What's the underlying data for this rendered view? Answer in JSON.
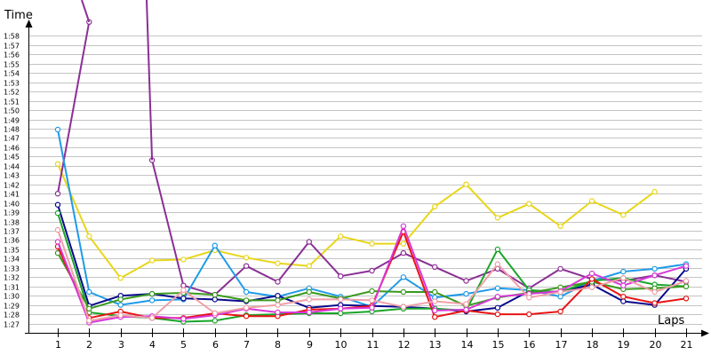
{
  "chart_data": {
    "type": "line",
    "ylabel": "Time",
    "xlabel": "Laps",
    "ylim": [
      "1:26",
      "1:59"
    ],
    "y_ticks": [
      "1:27",
      "1:28",
      "1:29",
      "1:30",
      "1:31",
      "1:32",
      "1:33",
      "1:34",
      "1:35",
      "1:36",
      "1:37",
      "1:38",
      "1:39",
      "1:40",
      "1:41",
      "1:42",
      "1:43",
      "1:44",
      "1:45",
      "1:46",
      "1:47",
      "1:48",
      "1:49",
      "1:50",
      "1:51",
      "1:52",
      "1:53",
      "1:54",
      "1:55",
      "1:56",
      "1:57",
      "1:58"
    ],
    "x": [
      "1",
      "2",
      "3",
      "4",
      "5",
      "6",
      "7",
      "8",
      "9",
      "10",
      "11",
      "12",
      "13",
      "14",
      "15",
      "16",
      "17",
      "18",
      "19",
      "20",
      "21"
    ],
    "grid": true,
    "series": [
      {
        "color": "#e8d61a",
        "values": [
          "1:44.2",
          "1:36.4",
          "1:31.9",
          "1:33.8",
          "1:33.9",
          "1:34.9",
          "1:34.1",
          "1:33.5",
          "1:33.2",
          "1:36.4",
          "1:35.6",
          "1:35.6",
          "1:39.6",
          "1:42.0",
          "1:38.4",
          "1:39.9",
          "1:37.5",
          "1:40.2",
          "1:38.7",
          "1:41.2",
          null
        ]
      },
      {
        "color": "#8b2f95",
        "values": [
          "1:41.0",
          "1:59.5",
          null,
          "1:44.6",
          "1:31.1",
          "1:30.1",
          "1:33.2",
          "1:31.5",
          "1:35.8",
          "1:32.1",
          "1:32.7",
          "1:34.6",
          "1:33.1",
          "1:31.6",
          "1:32.9",
          "1:30.8",
          "1:32.9",
          "1:31.8",
          "1:31.6",
          "1:32.2",
          "1:31.5"
        ]
      },
      {
        "color": "#1f9be8",
        "values": [
          "1:47.9",
          "1:30.4",
          "1:29.0",
          "1:29.5",
          "1:29.6",
          "1:35.4",
          "1:30.4",
          "1:29.9",
          "1:30.8",
          "1:29.9",
          "1:28.8",
          "1:32.0",
          "1:29.8",
          "1:30.2",
          "1:30.8",
          "1:30.6",
          "1:29.9",
          "1:31.6",
          "1:32.6",
          "1:32.9",
          "1:33.4"
        ]
      },
      {
        "color": "#0a0a8c",
        "values": [
          "1:39.8",
          "1:28.9",
          "1:30.0",
          "1:30.2",
          "1:29.7",
          "1:29.6",
          "1:29.4",
          "1:30.0",
          "1:28.7",
          "1:29.0",
          "1:28.9",
          "1:28.8",
          "1:28.6",
          "1:28.3",
          "1:28.7",
          "1:30.5",
          "1:30.4",
          "1:31.2",
          "1:29.4",
          "1:29.0",
          "1:32.9"
        ]
      },
      {
        "color": "#1aa52a",
        "values": [
          "1:38.9",
          "1:28.2",
          "1:27.8",
          "1:27.6",
          "1:27.2",
          "1:27.3",
          "1:27.9",
          "1:28.0",
          "1:28.1",
          "1:28.1",
          "1:28.3",
          "1:28.6",
          "1:28.6",
          "1:28.4",
          "1:35.0",
          "1:30.6",
          "1:30.4",
          "1:31.6",
          "1:31.9",
          "1:31.2",
          "1:31.0"
        ]
      },
      {
        "color": "#3a9a1e",
        "values": [
          "1:34.6",
          "1:28.6",
          "1:29.6",
          "1:30.2",
          "1:30.3",
          "1:30.1",
          "1:29.5",
          "1:29.5",
          "1:30.4",
          "1:29.7",
          "1:30.5",
          "1:30.4",
          "1:30.4",
          "1:28.9",
          "1:29.8",
          "1:30.3",
          "1:30.9",
          "1:31.5",
          "1:30.7",
          "1:30.8",
          "1:31.0"
        ]
      },
      {
        "color": "#e81414",
        "values": [
          "1:35.3",
          "1:27.6",
          "1:28.3",
          "1:27.6",
          "1:27.6",
          "1:28.1",
          "1:27.8",
          "1:27.8",
          "1:28.5",
          "1:28.6",
          "1:28.9",
          "1:36.9",
          "1:27.7",
          "1:28.4",
          "1:28.0",
          "1:28.0",
          "1:28.3",
          "1:31.8",
          "1:29.9",
          "1:29.2",
          "1:29.7"
        ]
      },
      {
        "color": "#d838d8",
        "values": [
          "1:35.8",
          "1:27.1",
          "1:27.7",
          "1:27.8",
          "1:27.5",
          "1:27.9",
          "1:28.6",
          "1:28.2",
          "1:28.2",
          "1:28.6",
          "1:28.7",
          "1:37.5",
          "1:28.4",
          "1:28.5",
          "1:29.9",
          "1:30.2",
          "1:30.5",
          "1:32.4",
          "1:31.1",
          "1:32.2",
          "1:33.2"
        ]
      },
      {
        "color": "#f0a0a8",
        "values": [
          "1:37.1",
          "1:27.3",
          "1:27.9",
          "1:27.6",
          "1:30.6",
          "1:28.1",
          "1:28.7",
          "1:29.0",
          "1:29.6",
          "1:29.6",
          "1:29.5",
          "1:28.8",
          "1:29.4",
          "1:29.1",
          "1:33.4",
          "1:29.8",
          "1:30.4",
          "1:30.9",
          "1:31.9",
          "1:30.4",
          "1:31.6"
        ]
      }
    ]
  }
}
